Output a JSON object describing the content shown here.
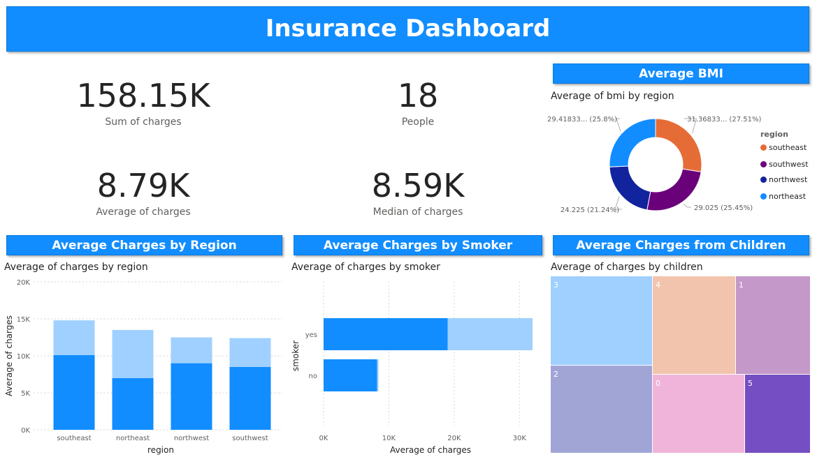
{
  "title": "Insurance Dashboard",
  "kpis": {
    "sum_charges": {
      "value": "158.15K",
      "label": "Sum of charges"
    },
    "people": {
      "value": "18",
      "label": "People"
    },
    "avg_charges": {
      "value": "8.79K",
      "label": "Average of charges"
    },
    "median_charges": {
      "value": "8.59K",
      "label": "Median of charges"
    }
  },
  "sections": {
    "bmi": "Average BMI",
    "region": "Average Charges by Region",
    "smoker": "Average Charges by Smoker",
    "children": "Average Charges from Children"
  },
  "colors": {
    "accent": "#118dff",
    "light": "#9fd0ff",
    "southeast": "#e66c37",
    "southwest": "#6b007b",
    "northwest": "#12239e",
    "northeast": "#118dff"
  },
  "chart_data": [
    {
      "type": "pie",
      "title": "Average of bmi by region",
      "legend_title": "region",
      "legend_position": "right",
      "slices": [
        {
          "name": "southeast",
          "value": 31.36833,
          "label": "31.36833... (27.51%)",
          "color": "#e66c37"
        },
        {
          "name": "southwest",
          "value": 29.025,
          "label": "29.025 (25.45%)",
          "color": "#6b007b"
        },
        {
          "name": "northwest",
          "value": 24.225,
          "label": "24.225 (21.24%)",
          "color": "#12239e"
        },
        {
          "name": "northeast",
          "value": 29.41833,
          "label": "29.41833... (25.8%)",
          "color": "#118dff"
        }
      ]
    },
    {
      "type": "bar",
      "title": "Average of charges by region",
      "xlabel": "region",
      "ylabel": "Average of charges",
      "categories": [
        "southeast",
        "northeast",
        "northwest",
        "southwest"
      ],
      "series": [
        {
          "values": [
            10100,
            7000,
            9000,
            8500
          ],
          "color": "#118dff"
        },
        {
          "values": [
            4700,
            6500,
            3500,
            3900
          ],
          "color": "#9fd0ff"
        }
      ],
      "ylim": [
        0,
        20000
      ],
      "yticks": [
        "0K",
        "5K",
        "10K",
        "15K",
        "20K"
      ],
      "ytick_values": [
        0,
        5000,
        10000,
        15000,
        20000
      ],
      "grid": true
    },
    {
      "type": "bar",
      "orientation": "horizontal",
      "title": "Average of charges by smoker",
      "xlabel": "Average of charges",
      "ylabel": "smoker",
      "categories": [
        "yes",
        "no"
      ],
      "series": [
        {
          "values": [
            19000,
            8200
          ],
          "color": "#118dff"
        },
        {
          "values": [
            13000,
            200
          ],
          "color": "#9fd0ff"
        }
      ],
      "xlim": [
        0,
        32000
      ],
      "xticks": [
        "0K",
        "10K",
        "20K",
        "30K"
      ],
      "xtick_values": [
        0,
        10000,
        20000,
        30000
      ],
      "grid": true
    },
    {
      "type": "treemap",
      "title": "Average of charges by children",
      "tiles": [
        {
          "label": "3",
          "color": "#9fd0ff"
        },
        {
          "label": "4",
          "color": "#f3c4ad"
        },
        {
          "label": "1",
          "color": "#c498c8"
        },
        {
          "label": "2",
          "color": "#a0a5d6"
        },
        {
          "label": "0",
          "color": "#f0b4da"
        },
        {
          "label": "5",
          "color": "#744ec2"
        }
      ]
    }
  ]
}
